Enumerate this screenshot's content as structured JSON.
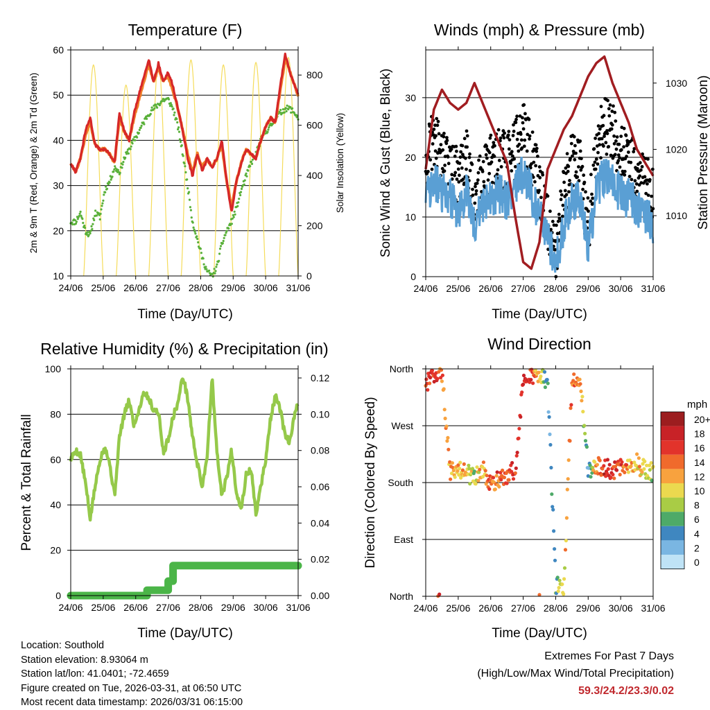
{
  "colors": {
    "temp2m": "#d62728",
    "temp9m": "#f07f2a",
    "dewpoint": "#59b039",
    "solar": "#f5dc5a",
    "wind": "#5a9fd4",
    "gust": "#000000",
    "pressure": "#a11d21",
    "rh": "#95c94a",
    "precip": "#4bb548"
  },
  "x_ticks": [
    "24/06",
    "25/06",
    "26/06",
    "27/06",
    "28/06",
    "29/06",
    "30/06",
    "31/06"
  ],
  "chart_data": [
    {
      "id": "temperature",
      "type": "line",
      "title": "Temperature (F)",
      "xlabel": "Time (Day/UTC)",
      "ylabel": "2m & 9m T (Red, Orange) & 2m Td (Green)",
      "ylabel_right": "Solar Insolation (Yellow)",
      "ylim": [
        10,
        60
      ],
      "yticks": [
        "10",
        "20",
        "30",
        "40",
        "50",
        "60"
      ],
      "ylim_right": [
        0,
        900
      ],
      "yticks_right": [
        "0",
        "200",
        "400",
        "600",
        "800"
      ],
      "x": [
        0,
        0.15,
        0.3,
        0.45,
        0.6,
        0.75,
        0.9,
        1.05,
        1.2,
        1.35,
        1.5,
        1.65,
        1.8,
        1.95,
        2.1,
        2.25,
        2.4,
        2.55,
        2.7,
        2.85,
        3.0,
        3.15,
        3.3,
        3.45,
        3.6,
        3.75,
        3.9,
        4.05,
        4.2,
        4.35,
        4.5,
        4.65,
        4.8,
        4.95,
        5.1,
        5.25,
        5.4,
        5.55,
        5.7,
        5.85,
        6.0,
        6.15,
        6.3,
        6.45,
        6.6,
        6.75,
        6.9,
        7.0
      ],
      "series": [
        {
          "name": "2m T",
          "values": [
            35,
            33,
            36,
            42,
            45,
            39,
            38,
            38,
            37,
            35,
            46,
            42,
            40,
            46,
            50,
            54,
            58,
            53,
            57,
            53,
            55,
            52,
            47,
            42,
            36,
            32,
            37,
            33,
            36,
            34,
            36,
            40,
            31,
            24,
            31,
            35,
            38,
            37,
            36,
            40,
            43,
            45,
            44,
            52,
            59,
            55,
            52,
            50
          ]
        },
        {
          "name": "9m T",
          "values": [
            35,
            33,
            36,
            41,
            44,
            39,
            38,
            38,
            37,
            35,
            45,
            42,
            40,
            45,
            49,
            53,
            57,
            53,
            56,
            53,
            54,
            51,
            47,
            42,
            37,
            33,
            37,
            34,
            36,
            34,
            36,
            39,
            31,
            25,
            31,
            35,
            38,
            37,
            36,
            40,
            43,
            45,
            44,
            51,
            58,
            55,
            52,
            50
          ]
        },
        {
          "name": "2m Td",
          "values": [
            22,
            22,
            24,
            20,
            19,
            24,
            23,
            29,
            31,
            34,
            33,
            36,
            38,
            40,
            42,
            44,
            46,
            47,
            48,
            49,
            49,
            47,
            43,
            37,
            30,
            22,
            18,
            14,
            11,
            10,
            12,
            17,
            20,
            22,
            25,
            29,
            32,
            35,
            37,
            40,
            42,
            43,
            45,
            46,
            47,
            47,
            46,
            45
          ]
        },
        {
          "name": "Solar",
          "axis": "right",
          "peaks": [
            {
              "day": 0.7,
              "value": 840
            },
            {
              "day": 1.7,
              "value": 760
            },
            {
              "day": 2.7,
              "value": 850
            },
            {
              "day": 3.7,
              "value": 860
            },
            {
              "day": 4.7,
              "value": 840
            },
            {
              "day": 5.7,
              "value": 850
            },
            {
              "day": 6.7,
              "value": 870
            }
          ]
        }
      ]
    },
    {
      "id": "winds",
      "type": "scatter",
      "title": "Winds (mph) & Pressure (mb)",
      "xlabel": "Time (Day/UTC)",
      "ylabel": "Sonic Wind & Gust (Blue, Black)",
      "ylabel_right": "Station Pressure (Maroon)",
      "ylim": [
        0,
        38
      ],
      "yticks": [
        "0",
        "10",
        "20",
        "30"
      ],
      "ylim_right": [
        1000.8,
        1035.0
      ],
      "yticks_right": [
        "1010",
        "1020",
        "1030"
      ],
      "x": [
        0,
        0.25,
        0.5,
        0.75,
        1.0,
        1.25,
        1.5,
        1.75,
        2.0,
        2.25,
        2.5,
        2.75,
        3.0,
        3.25,
        3.5,
        3.75,
        4.0,
        4.25,
        4.5,
        4.75,
        5.0,
        5.25,
        5.5,
        5.75,
        6.0,
        6.25,
        6.5,
        6.75,
        7.0
      ],
      "series": [
        {
          "name": "Sonic Wind",
          "values": [
            14,
            16,
            14,
            13,
            11,
            14,
            8,
            12,
            13,
            14,
            13,
            15,
            17,
            14,
            10,
            6,
            2,
            9,
            13,
            12,
            5,
            14,
            17,
            16,
            14,
            13,
            12,
            10,
            9
          ]
        },
        {
          "name": "Gust",
          "values": [
            20,
            23,
            20,
            18,
            17,
            20,
            12,
            17,
            19,
            20,
            19,
            21,
            25,
            20,
            15,
            9,
            3,
            14,
            19,
            18,
            8,
            21,
            26,
            24,
            21,
            19,
            18,
            16,
            14
          ]
        },
        {
          "name": "Pressure",
          "axis": "right",
          "values": [
            1017,
            1026,
            1029,
            1027,
            1026,
            1027,
            1030,
            1027,
            1024,
            1021,
            1018,
            1010,
            1003,
            1002,
            1006,
            1017,
            1020,
            1023,
            1025,
            1028,
            1031,
            1033,
            1034,
            1030,
            1027,
            1024,
            1020,
            1018,
            1016
          ]
        }
      ]
    },
    {
      "id": "humidity",
      "type": "line",
      "title": "Relative Humidity (%) & Precipitation (in)",
      "xlabel": "Time (Day/UTC)",
      "ylabel": "Percent & Total Rainfall",
      "ylim": [
        0,
        100
      ],
      "yticks": [
        "0",
        "20",
        "40",
        "60",
        "80",
        "100"
      ],
      "ylim_right": [
        0,
        0.125
      ],
      "yticks_right": [
        "0.00",
        "0.02",
        "0.04",
        "0.06",
        "0.08",
        "0.10",
        "0.12"
      ],
      "x": [
        0,
        0.15,
        0.3,
        0.45,
        0.6,
        0.75,
        0.9,
        1.05,
        1.2,
        1.35,
        1.5,
        1.65,
        1.8,
        1.95,
        2.1,
        2.25,
        2.4,
        2.55,
        2.7,
        2.85,
        3.0,
        3.15,
        3.3,
        3.45,
        3.6,
        3.75,
        3.9,
        4.05,
        4.2,
        4.35,
        4.5,
        4.65,
        4.8,
        4.95,
        5.1,
        5.25,
        5.4,
        5.55,
        5.7,
        5.85,
        6.0,
        6.15,
        6.3,
        6.45,
        6.6,
        6.75,
        6.9,
        7.0
      ],
      "series": [
        {
          "name": "Relative Humidity",
          "values": [
            60,
            64,
            62,
            50,
            34,
            48,
            60,
            66,
            58,
            44,
            70,
            80,
            86,
            75,
            82,
            90,
            87,
            82,
            81,
            63,
            69,
            79,
            85,
            97,
            87,
            70,
            58,
            48,
            62,
            96,
            63,
            44,
            52,
            64,
            46,
            38,
            53,
            56,
            36,
            48,
            60,
            78,
            88,
            82,
            70,
            68,
            80,
            85
          ]
        },
        {
          "name": "Precipitation",
          "axis": "right",
          "steps": [
            {
              "day": 0,
              "value": 0.0
            },
            {
              "day": 2.35,
              "value": 0.0
            },
            {
              "day": 2.35,
              "value": 0.003
            },
            {
              "day": 3.0,
              "value": 0.003
            },
            {
              "day": 3.0,
              "value": 0.008
            },
            {
              "day": 3.15,
              "value": 0.008
            },
            {
              "day": 3.15,
              "value": 0.0165
            },
            {
              "day": 7.0,
              "value": 0.0165
            }
          ]
        }
      ]
    },
    {
      "id": "direction",
      "type": "scatter",
      "title": "Wind Direction",
      "xlabel": "Time (Day/UTC)",
      "ylabel": "Direction (Colored By Speed)",
      "ylim": [
        0,
        360
      ],
      "yticks": [
        "North",
        "East",
        "South",
        "West",
        "North"
      ],
      "colorbar_title": "mph",
      "colorbar_labels": [
        "20+",
        "18",
        "16",
        "14",
        "12",
        "10",
        "8",
        "6",
        "4",
        "2",
        "0"
      ],
      "colorbar_colors": [
        "#9c1d1f",
        "#c82227",
        "#e2332b",
        "#f06a2c",
        "#f8a23e",
        "#ebd94f",
        "#a9cc45",
        "#4eaa68",
        "#3f87c0",
        "#7ab6e2",
        "#bfe3f6"
      ],
      "x": [
        0,
        0.25,
        0.5,
        0.75,
        1.0,
        1.25,
        1.5,
        1.75,
        2.0,
        2.25,
        2.5,
        2.75,
        3.0,
        3.25,
        3.5,
        3.75,
        4.0,
        4.25,
        4.5,
        4.75,
        5.0,
        5.25,
        5.5,
        5.75,
        6.0,
        6.25,
        6.5,
        6.75,
        7.0
      ],
      "series": [
        {
          "name": "Direction (deg)",
          "values": [
            340,
            345,
            350,
            200,
            200,
            195,
            190,
            200,
            180,
            185,
            190,
            200,
            345,
            350,
            350,
            340,
            20,
            10,
            340,
            345,
            200,
            205,
            205,
            200,
            205,
            200,
            210,
            200,
            195
          ]
        },
        {
          "name": "Speed (mph)",
          "values": [
            16,
            17,
            14,
            12,
            11,
            12,
            8,
            12,
            14,
            15,
            15,
            16,
            18,
            15,
            12,
            3,
            6,
            10,
            14,
            12,
            4,
            13,
            17,
            16,
            15,
            12,
            11,
            10,
            8
          ]
        }
      ]
    }
  ],
  "info": {
    "location": "Location: Southold",
    "elevation": "Station elevation: 8.93064 m",
    "latlon": "Station lat/lon: 41.0401; -72.4659",
    "created": "Figure created on Tue, 2026-03-31, at 06:50 UTC",
    "recent": "Most recent data timestamp: 2026/03/31 06:15:00"
  },
  "extremes": {
    "title": "Extremes For Past 7 Days",
    "subtitle": "(High/Low/Max Wind/Total Precipitation)",
    "values": "59.3/24.2/23.3/0.02"
  }
}
